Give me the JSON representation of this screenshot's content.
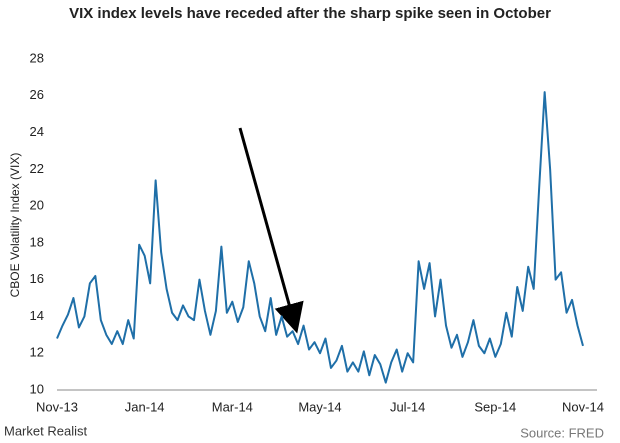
{
  "chart_data": {
    "type": "line",
    "title": "VIX index levels have receded after the sharp spike seen in October",
    "y_label": "CBOE Volatility Index (VIX)",
    "source": "Source: FRED",
    "brand": "Market Realist",
    "categories": [
      "Nov-13",
      null,
      null,
      null,
      null,
      null,
      null,
      null,
      null,
      null,
      null,
      null,
      null,
      null,
      null,
      null,
      "Jan-14",
      null,
      null,
      null,
      null,
      null,
      null,
      null,
      null,
      null,
      null,
      null,
      null,
      null,
      null,
      null,
      "Mar-14",
      null,
      null,
      null,
      null,
      null,
      null,
      null,
      null,
      null,
      null,
      null,
      null,
      null,
      null,
      null,
      "May-14",
      null,
      null,
      null,
      null,
      null,
      null,
      null,
      null,
      null,
      null,
      null,
      null,
      null,
      null,
      null,
      "Jul-14",
      null,
      null,
      null,
      null,
      null,
      null,
      null,
      null,
      null,
      null,
      null,
      null,
      null,
      null,
      null,
      "Sep-14",
      null,
      null,
      null,
      null,
      null,
      null,
      null,
      null,
      null,
      null,
      null,
      null,
      null,
      null,
      null,
      "Nov-14"
    ],
    "values": [
      12.8,
      13.5,
      14.1,
      15.0,
      13.4,
      14.0,
      15.8,
      16.2,
      13.8,
      13.0,
      12.5,
      13.2,
      12.5,
      13.8,
      12.8,
      17.9,
      17.3,
      15.8,
      21.4,
      17.5,
      15.5,
      14.2,
      13.8,
      14.6,
      14.0,
      13.8,
      16.0,
      14.3,
      13.0,
      14.3,
      17.8,
      14.2,
      14.8,
      13.7,
      14.5,
      17.0,
      15.8,
      14.0,
      13.2,
      15.0,
      13.0,
      14.0,
      12.9,
      13.2,
      12.5,
      13.5,
      12.2,
      12.6,
      12.0,
      12.8,
      11.2,
      11.6,
      12.4,
      11.0,
      11.5,
      11.0,
      12.1,
      10.8,
      11.9,
      11.4,
      10.4,
      11.5,
      12.2,
      11.0,
      12.0,
      11.5,
      17.0,
      15.5,
      16.9,
      14.0,
      16.0,
      13.5,
      12.3,
      13.0,
      11.8,
      12.6,
      13.8,
      12.4,
      12.0,
      12.8,
      11.8,
      12.5,
      14.2,
      12.9,
      15.6,
      14.3,
      16.7,
      15.5,
      21.0,
      26.2,
      22.0,
      16.0,
      16.4,
      14.2,
      14.9,
      13.5,
      12.4
    ],
    "color": "#1f6fa8",
    "ylim": [
      10,
      28
    ],
    "yticks": [
      10,
      12,
      14,
      16,
      18,
      20,
      22,
      24,
      26,
      28
    ],
    "grid": false
  }
}
